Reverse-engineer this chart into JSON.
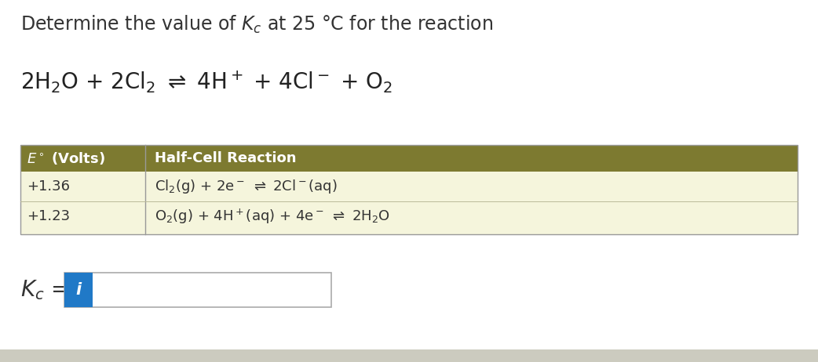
{
  "bg_color": "#ffffff",
  "title_text": "Determine the value of $K_c$ at 25 °C for the reaction",
  "table_header_bg": "#7d7a30",
  "table_body_bg": "#f5f5dc",
  "table_col1_header": "$\\it{E}$$^\\circ$ (Volts)",
  "table_col2_header": "Half-Cell Reaction",
  "table_row1_col1": "+1.36",
  "table_row2_col1": "+1.23",
  "kc_label": "$K_c$ =",
  "input_box_color": "#2079C7",
  "input_icon": "i",
  "font_size_title": 17,
  "font_size_reaction": 20,
  "font_size_table_header": 13,
  "font_size_table_body": 13,
  "font_size_kc": 20,
  "title_color": "#333333",
  "reaction_color": "#222222",
  "header_text_color": "#ffffff",
  "body_text_color": "#333333",
  "bottom_bar_color": "#cccbbf"
}
